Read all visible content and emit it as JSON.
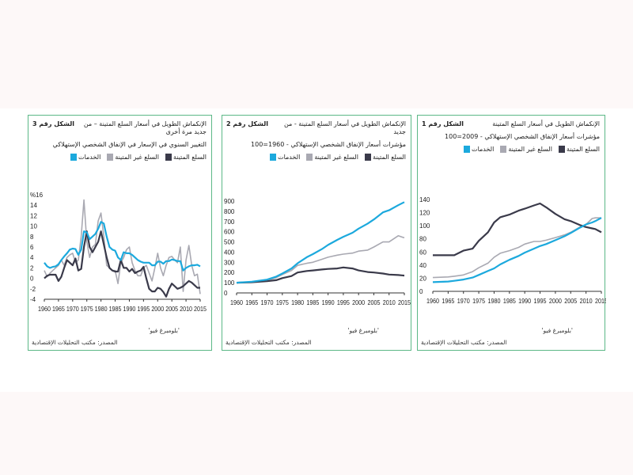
{
  "colors": {
    "services": "#1ca9dd",
    "nondurable": "#a9a9b2",
    "durable": "#3a3a4a",
    "border": "#5cb887"
  },
  "legend": {
    "durable": "السلع المتينة",
    "nondurable": "السلع غير المتينة",
    "services": "الخدمات"
  },
  "source": "المصدر: مكتب التحليلات الإقتصادية",
  "credit": "'بلومبرغ فيو'",
  "chart_data": [
    {
      "type": "line",
      "figure": "الشكل رقم 1",
      "title": "الإنكماش الطويل في أسعار السلع المتينة",
      "subtitle": "مؤشرات أسعار الإنفاق الشخصي الإستهلاكي - 2009=100",
      "xlim": [
        1960,
        2015
      ],
      "ylim": [
        0,
        140
      ],
      "yticks": [
        "0",
        "20",
        "40",
        "60",
        "80",
        "100",
        "120",
        "140"
      ],
      "ytick_values": [
        0,
        20,
        40,
        60,
        80,
        100,
        120,
        140
      ],
      "xticks": [
        "1960",
        "1965",
        "1970",
        "1975",
        "1980",
        "1985",
        "1990",
        "1995",
        "2000",
        "2005",
        "2010",
        "2015"
      ],
      "x": [
        1960,
        1965,
        1967,
        1970,
        1973,
        1975,
        1978,
        1980,
        1982,
        1985,
        1988,
        1990,
        1993,
        1995,
        1997,
        2000,
        2003,
        2005,
        2008,
        2010,
        2012,
        2013,
        2015
      ],
      "series": [
        {
          "name": "durable",
          "values": [
            55,
            55,
            55,
            62,
            65,
            77,
            90,
            105,
            113,
            117,
            123,
            126,
            131,
            134,
            128,
            118,
            110,
            107,
            101,
            98,
            96,
            95,
            90
          ]
        },
        {
          "name": "nondurable",
          "values": [
            21,
            22,
            23,
            25,
            30,
            36,
            43,
            52,
            58,
            62,
            67,
            72,
            76,
            76,
            78,
            82,
            86,
            90,
            98,
            102,
            111,
            112,
            112
          ]
        },
        {
          "name": "services",
          "values": [
            14,
            15,
            16,
            18,
            21,
            25,
            31,
            35,
            41,
            48,
            54,
            59,
            65,
            69,
            72,
            78,
            84,
            89,
            97,
            102,
            105,
            107,
            112
          ]
        }
      ]
    },
    {
      "type": "line",
      "figure": "الشكل رقم 2",
      "title": "الإنكماش الطويل في أسعار السلع المتينة - من جديد",
      "subtitle": "مؤشرات أسعار الإنفاق الشخصي الإستهلاكي - 1960=100",
      "xlim": [
        1960,
        2015
      ],
      "ylim": [
        0,
        900
      ],
      "yticks": [
        "0",
        "100",
        "200",
        "300",
        "400",
        "500",
        "600",
        "700",
        "800",
        "900"
      ],
      "ytick_values": [
        0,
        100,
        200,
        300,
        400,
        500,
        600,
        700,
        800,
        900
      ],
      "xticks": [
        "1960",
        "1965",
        "1970",
        "1975",
        "1980",
        "1985",
        "1990",
        "1995",
        "2000",
        "2005",
        "2010",
        "2015"
      ],
      "x": [
        1960,
        1965,
        1970,
        1973,
        1975,
        1978,
        1980,
        1983,
        1985,
        1988,
        1990,
        1993,
        1995,
        1998,
        2000,
        2003,
        2005,
        2008,
        2010,
        2013,
        2015
      ],
      "series": [
        {
          "name": "durable",
          "values": [
            100,
            105,
            115,
            125,
            145,
            165,
            200,
            215,
            220,
            230,
            235,
            240,
            250,
            240,
            220,
            205,
            200,
            190,
            180,
            175,
            170
          ]
        },
        {
          "name": "nondurable",
          "values": [
            100,
            105,
            120,
            150,
            180,
            220,
            270,
            290,
            300,
            330,
            350,
            370,
            380,
            390,
            410,
            420,
            450,
            500,
            500,
            560,
            540
          ]
        },
        {
          "name": "services",
          "values": [
            100,
            110,
            130,
            160,
            190,
            240,
            290,
            350,
            380,
            430,
            470,
            520,
            550,
            590,
            630,
            680,
            720,
            790,
            810,
            860,
            890
          ]
        }
      ]
    },
    {
      "type": "line",
      "figure": "الشكل رقم 3",
      "title": "الإنكماش الطويل في أسعار السلع المتينة – من جديد مرة أخرى",
      "subtitle": "التغيير السنوي في الإسعار في الإنفاق الشخصي الإستهلاكي",
      "xlim": [
        1960,
        2015
      ],
      "ylim": [
        -4,
        16
      ],
      "yticks": [
        "-4",
        "-2",
        "0",
        "2",
        "4",
        "6",
        "8",
        "10",
        "12",
        "14",
        "%16"
      ],
      "ytick_values": [
        -4,
        -2,
        0,
        2,
        4,
        6,
        8,
        10,
        12,
        14,
        16
      ],
      "xticks": [
        "1960",
        "1965",
        "1970",
        "1975",
        "1980",
        "1985",
        "1990",
        "1995",
        "2000",
        "2005",
        "2010",
        "2015"
      ],
      "x": [
        1960,
        1961,
        1962,
        1963,
        1964,
        1965,
        1966,
        1967,
        1968,
        1969,
        1970,
        1971,
        1972,
        1973,
        1974,
        1975,
        1976,
        1977,
        1978,
        1979,
        1980,
        1981,
        1982,
        1983,
        1984,
        1985,
        1986,
        1987,
        1988,
        1989,
        1990,
        1991,
        1992,
        1993,
        1994,
        1995,
        1996,
        1997,
        1998,
        1999,
        2000,
        2001,
        2002,
        2003,
        2004,
        2005,
        2006,
        2007,
        2008,
        2009,
        2010,
        2011,
        2012,
        2013,
        2014,
        2015
      ],
      "series": [
        {
          "name": "durable",
          "values": [
            0,
            0.5,
            0.7,
            0.7,
            0.7,
            -0.5,
            0.3,
            2,
            3.5,
            3,
            2.5,
            3.8,
            1.5,
            1.8,
            6,
            9,
            6,
            5,
            6,
            7,
            9,
            6.5,
            4,
            2,
            1.5,
            1.3,
            1.3,
            3.5,
            2,
            2,
            1.3,
            1.8,
            1,
            1.3,
            1.5,
            2.2,
            0,
            -2,
            -2.5,
            -2.5,
            -1.8,
            -2,
            -2.6,
            -3.5,
            -2,
            -1,
            -1.5,
            -2,
            -1.8,
            -1.5,
            -1,
            -0.5,
            -0.8,
            -1.3,
            -1.8,
            -1.8
          ]
        },
        {
          "name": "nondurable",
          "values": [
            1.5,
            0.3,
            1,
            1.5,
            2,
            2.5,
            3.5,
            2.5,
            4,
            4.5,
            4.8,
            3,
            3.5,
            8,
            15,
            7,
            4,
            6,
            6.5,
            11,
            12.5,
            8,
            2.5,
            2,
            1.5,
            1.5,
            -1,
            3,
            4,
            5.5,
            6,
            3,
            1.5,
            0.5,
            0.5,
            2,
            2.5,
            1,
            -0.5,
            2,
            4.8,
            2,
            0.5,
            2.5,
            4,
            4.2,
            3.5,
            3,
            6,
            -2.5,
            3.5,
            6.3,
            2.5,
            0.5,
            0.8,
            -3
          ]
        },
        {
          "name": "services",
          "values": [
            3,
            2.3,
            2,
            2.2,
            2.3,
            2.7,
            3.5,
            4.2,
            4.8,
            5.5,
            5.7,
            5.6,
            4.5,
            5.5,
            9,
            8.8,
            7.5,
            8,
            8.5,
            9.5,
            10.8,
            10.5,
            8,
            6,
            5.5,
            5.3,
            4,
            3.5,
            5,
            4.8,
            4.8,
            4.5,
            4,
            3.5,
            3.2,
            3,
            3,
            3,
            2.5,
            2.5,
            3.2,
            3.2,
            2.8,
            3.3,
            3.3,
            3.6,
            3.5,
            3.3,
            3.3,
            1.5,
            2,
            2.3,
            2.5,
            2.5,
            2.6,
            2.3
          ]
        }
      ]
    }
  ]
}
